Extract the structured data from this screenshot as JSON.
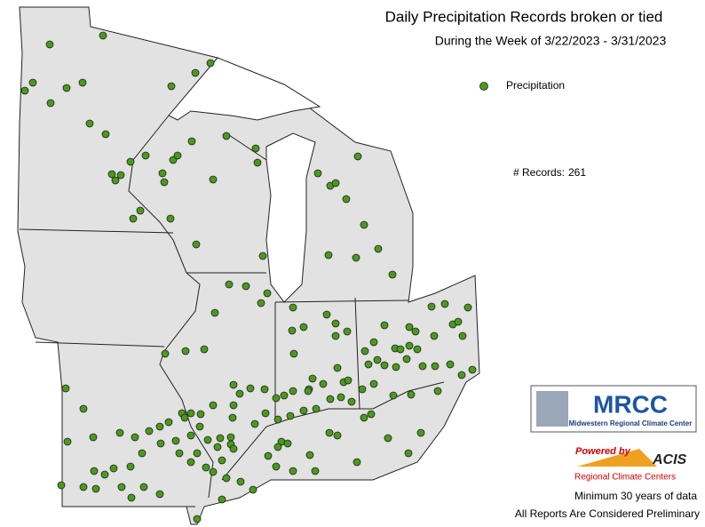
{
  "title": "Daily Precipitation Records broken or tied",
  "subtitle": "During the Week of 3/22/2023 - 3/31/2023",
  "legend": {
    "label": "Precipitation",
    "color": "#4a9a1a"
  },
  "records": {
    "label": "# Records:",
    "count": 261
  },
  "logos": {
    "mrcc": "MRCC",
    "mrcc_name": "Midwestern Regional Climate Center",
    "powered_by": "Powered by",
    "acis": "ACIS",
    "acis_name": "Regional Climate Centers"
  },
  "notes": [
    "Minimum 30 years of data",
    "All Reports Are Considered Preliminary"
  ]
}
